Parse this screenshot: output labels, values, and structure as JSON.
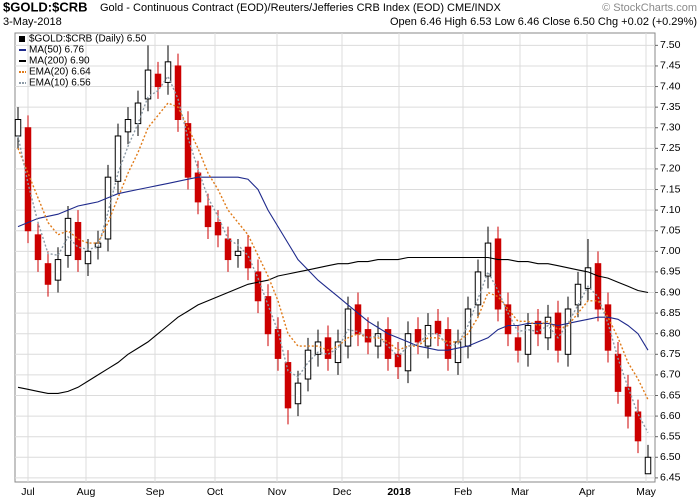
{
  "chart_data": {
    "type": "candlestick",
    "title": "$GOLD:$CRB",
    "subtitle": "Gold - Continuous Contract (EOD)/Reuters/Jefferies CRB Index (EOD)  CME/INDX",
    "date": "3-May-2018",
    "quote": "Open 6.46  High 6.53  Low 6.46  Close 6.50  Chg +0.02 (+0.29%)",
    "watermark": "© StockCharts.com",
    "name": "$GOLD:$CRB (Daily) 6.50",
    "up_color": "#000000",
    "down_color": "#cc0000",
    "grid": true,
    "legend": "top-left",
    "categories": [
      null,
      null,
      null,
      null,
      null,
      null,
      null,
      null,
      null,
      null,
      null,
      null,
      null,
      null,
      null,
      null,
      null,
      null,
      null,
      null,
      null,
      null,
      null,
      null,
      null,
      null,
      null,
      null,
      null,
      null,
      null,
      null,
      null,
      null,
      null,
      null,
      null,
      null,
      null,
      null,
      null,
      null,
      null,
      null,
      null,
      null,
      null,
      null,
      null,
      null,
      null,
      null,
      null,
      null,
      null,
      null,
      null,
      null,
      null,
      null,
      null,
      null,
      null,
      null
    ],
    "open": [
      7.28,
      7.3,
      7.04,
      6.97,
      6.93,
      6.99,
      7.07,
      6.97,
      7.01,
      7.03,
      7.17,
      7.29,
      7.31,
      7.37,
      7.43,
      7.41,
      7.45,
      7.31,
      7.19,
      7.11,
      7.07,
      7.03,
      6.99,
      7.01,
      6.95,
      6.89,
      6.81,
      6.73,
      6.63,
      6.69,
      6.75,
      6.79,
      6.73,
      6.77,
      6.87,
      6.81,
      6.77,
      6.81,
      6.75,
      6.71,
      6.81,
      6.77,
      6.83,
      6.81,
      6.73,
      6.77,
      6.87,
      6.94,
      7.03,
      6.87,
      6.79,
      6.75,
      6.83,
      6.79,
      6.85,
      6.75,
      6.87,
      6.91,
      6.97,
      6.87,
      6.75,
      6.67,
      6.61,
      6.46
    ],
    "high": [
      7.35,
      7.33,
      7.07,
      7.0,
      7.01,
      7.11,
      7.1,
      7.03,
      7.05,
      7.21,
      7.31,
      7.35,
      7.39,
      7.5,
      7.46,
      7.5,
      7.48,
      7.34,
      7.22,
      7.14,
      7.1,
      7.06,
      7.03,
      7.04,
      6.98,
      6.92,
      6.84,
      6.76,
      6.71,
      6.79,
      6.81,
      6.82,
      6.81,
      6.89,
      6.9,
      6.84,
      6.83,
      6.84,
      6.78,
      6.83,
      6.84,
      6.85,
      6.86,
      6.84,
      6.81,
      6.89,
      6.98,
      7.06,
      7.06,
      6.9,
      6.82,
      6.85,
      6.86,
      6.87,
      6.88,
      6.89,
      6.95,
      7.03,
      7.0,
      6.9,
      6.78,
      6.7,
      6.64,
      6.53
    ],
    "low": [
      7.25,
      7.02,
      6.95,
      6.89,
      6.9,
      6.96,
      6.95,
      6.94,
      6.98,
      7.0,
      7.14,
      7.26,
      7.28,
      7.34,
      7.37,
      7.38,
      7.29,
      7.15,
      7.09,
      7.03,
      7.01,
      6.95,
      6.96,
      6.93,
      6.85,
      6.77,
      6.71,
      6.58,
      6.6,
      6.66,
      6.72,
      6.71,
      6.7,
      6.74,
      6.77,
      6.75,
      6.74,
      6.71,
      6.69,
      6.68,
      6.75,
      6.74,
      6.77,
      6.71,
      6.7,
      6.74,
      6.84,
      6.91,
      6.83,
      6.77,
      6.73,
      6.72,
      6.77,
      6.76,
      6.73,
      6.72,
      6.84,
      6.88,
      6.83,
      6.73,
      6.63,
      6.57,
      6.51,
      6.46
    ],
    "close": [
      7.32,
      7.05,
      6.98,
      6.92,
      6.98,
      7.08,
      6.98,
      7.0,
      7.02,
      7.18,
      7.28,
      7.32,
      7.36,
      7.44,
      7.4,
      7.46,
      7.32,
      7.18,
      7.12,
      7.06,
      7.04,
      6.98,
      7.0,
      6.96,
      6.88,
      6.8,
      6.74,
      6.62,
      6.68,
      6.76,
      6.78,
      6.74,
      6.78,
      6.86,
      6.8,
      6.78,
      6.8,
      6.74,
      6.72,
      6.8,
      6.78,
      6.82,
      6.8,
      6.74,
      6.78,
      6.86,
      6.95,
      7.02,
      6.86,
      6.8,
      6.76,
      6.82,
      6.8,
      6.84,
      6.76,
      6.86,
      6.92,
      6.96,
      6.86,
      6.76,
      6.66,
      6.6,
      6.54,
      6.5
    ],
    "lines": [
      {
        "name": "MA(50) 6.76",
        "color": "#1f2a8c",
        "dash": false,
        "values": [
          7.06,
          7.07,
          7.08,
          7.085,
          7.09,
          7.1,
          7.11,
          7.115,
          7.12,
          7.13,
          7.14,
          7.145,
          7.15,
          7.155,
          7.16,
          7.165,
          7.17,
          7.175,
          7.18,
          7.18,
          7.18,
          7.18,
          7.18,
          7.175,
          7.15,
          7.1,
          7.06,
          7.02,
          6.98,
          6.955,
          6.93,
          6.91,
          6.89,
          6.87,
          6.85,
          6.83,
          6.815,
          6.8,
          6.79,
          6.78,
          6.77,
          6.765,
          6.76,
          6.76,
          6.765,
          6.77,
          6.78,
          6.79,
          6.81,
          6.82,
          6.82,
          6.825,
          6.825,
          6.825,
          6.82,
          6.825,
          6.83,
          6.835,
          6.84,
          6.84,
          6.835,
          6.82,
          6.8,
          6.76
        ]
      },
      {
        "name": "MA(200) 6.90",
        "color": "#000000",
        "dash": false,
        "values": [
          6.67,
          6.665,
          6.66,
          6.655,
          6.655,
          6.66,
          6.67,
          6.685,
          6.7,
          6.715,
          6.73,
          6.75,
          6.765,
          6.78,
          6.8,
          6.82,
          6.84,
          6.855,
          6.87,
          6.88,
          6.89,
          6.9,
          6.91,
          6.92,
          6.925,
          6.93,
          6.94,
          6.945,
          6.95,
          6.955,
          6.96,
          6.965,
          6.97,
          6.97,
          6.975,
          6.975,
          6.98,
          6.98,
          6.98,
          6.985,
          6.985,
          6.985,
          6.985,
          6.985,
          6.985,
          6.985,
          6.985,
          6.985,
          6.98,
          6.98,
          6.975,
          6.975,
          6.97,
          6.97,
          6.965,
          6.96,
          6.955,
          6.95,
          6.94,
          6.935,
          6.925,
          6.915,
          6.905,
          6.9
        ]
      },
      {
        "name": "EMA(20) 6.64",
        "color": "#e07b1a",
        "dash": true,
        "values": [
          7.25,
          7.19,
          7.13,
          7.07,
          7.04,
          7.05,
          7.03,
          7.02,
          7.02,
          7.07,
          7.13,
          7.19,
          7.24,
          7.3,
          7.33,
          7.36,
          7.35,
          7.3,
          7.25,
          7.19,
          7.15,
          7.1,
          7.07,
          7.04,
          6.99,
          6.94,
          6.88,
          6.8,
          6.77,
          6.77,
          6.77,
          6.76,
          6.77,
          6.79,
          6.8,
          6.79,
          6.79,
          6.78,
          6.76,
          6.77,
          6.77,
          6.79,
          6.79,
          6.78,
          6.78,
          6.8,
          6.84,
          6.9,
          6.89,
          6.86,
          6.83,
          6.83,
          6.82,
          6.83,
          6.81,
          6.82,
          6.85,
          6.88,
          6.88,
          6.84,
          6.79,
          6.73,
          6.69,
          6.64
        ]
      },
      {
        "name": "EMA(10) 6.56",
        "color": "#8c9aa6",
        "dash": true,
        "values": [
          7.28,
          7.165,
          7.07,
          6.995,
          6.99,
          7.035,
          7.01,
          7.005,
          7.01,
          7.095,
          7.19,
          7.255,
          7.31,
          7.375,
          7.39,
          7.425,
          7.37,
          7.275,
          7.2,
          7.13,
          7.085,
          7.03,
          7.015,
          6.99,
          6.935,
          6.87,
          6.805,
          6.71,
          6.695,
          6.73,
          6.755,
          6.75,
          6.765,
          6.81,
          6.805,
          6.79,
          6.795,
          6.77,
          6.745,
          6.77,
          6.775,
          6.8,
          6.8,
          6.77,
          6.775,
          6.82,
          6.885,
          6.95,
          6.905,
          6.85,
          6.805,
          6.81,
          6.805,
          6.82,
          6.79,
          6.825,
          6.87,
          6.915,
          6.89,
          6.825,
          6.74,
          6.67,
          6.605,
          6.56
        ]
      }
    ],
    "xlim": [
      -0.3,
      63.7
    ],
    "xticks": [
      {
        "value": 1,
        "label": "Jul"
      },
      {
        "value": 6.8,
        "label": "Aug"
      },
      {
        "value": 13.7,
        "label": "Sep"
      },
      {
        "value": 19.7,
        "label": "Oct"
      },
      {
        "value": 25.9,
        "label": "Nov"
      },
      {
        "value": 32.4,
        "label": "Dec"
      },
      {
        "value": 38.1,
        "label": "2018"
      },
      {
        "value": 44.5,
        "label": "Feb"
      },
      {
        "value": 50.2,
        "label": "Mar"
      },
      {
        "value": 56.9,
        "label": "Apr"
      },
      {
        "value": 62.8,
        "label": "May"
      }
    ],
    "ylim": [
      6.44,
      7.53
    ],
    "yticks": [
      6.45,
      {
        "value": 6.5,
        "label": "6.50"
      },
      6.55,
      {
        "value": 6.6,
        "label": "6.60"
      },
      6.65,
      {
        "value": 6.7,
        "label": "6.70"
      },
      6.75,
      {
        "value": 6.8,
        "label": "6.80"
      },
      6.85,
      {
        "value": 6.9,
        "label": "6.90"
      },
      6.95,
      {
        "value": 7,
        "label": "7.00"
      },
      7.05,
      {
        "value": 7.1,
        "label": "7.10"
      },
      7.15,
      {
        "value": 7.2,
        "label": "7.20"
      },
      7.25,
      {
        "value": 7.3,
        "label": "7.30"
      },
      7.35,
      {
        "value": 7.4,
        "label": "7.40"
      },
      7.45,
      {
        "value": 7.5,
        "label": "7.50"
      }
    ]
  }
}
